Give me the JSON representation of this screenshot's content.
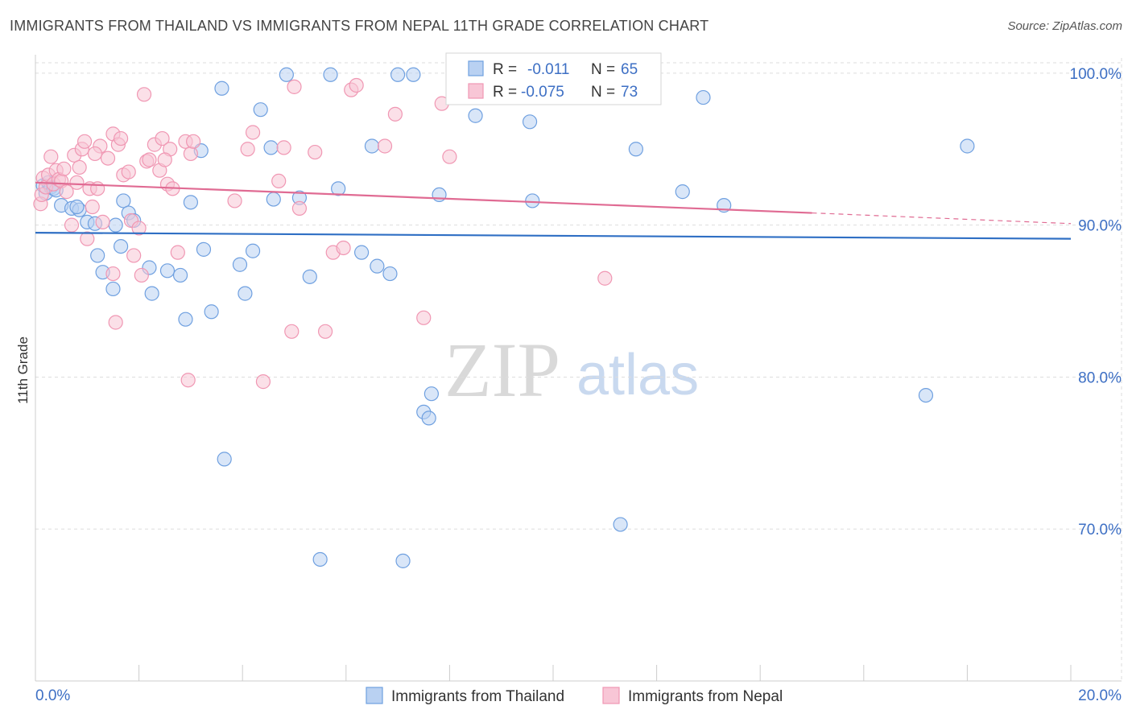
{
  "title": "IMMIGRANTS FROM THAILAND VS IMMIGRANTS FROM NEPAL 11TH GRADE CORRELATION CHART",
  "source": "Source: ZipAtlas.com",
  "watermark": {
    "zip": "ZIP",
    "atlas": "atlas"
  },
  "legend_box": {
    "rows": [
      {
        "r_label": "R =",
        "r_value": "-0.011",
        "n_label": "N =",
        "n_value": "65"
      },
      {
        "r_label": "R =",
        "r_value": "-0.075",
        "n_label": "N =",
        "n_value": "73"
      }
    ]
  },
  "bottom_legend": [
    "Immigrants from Thailand",
    "Immigrants from Nepal"
  ],
  "colors": {
    "thailand": "#6fa0e0",
    "thailand_fill": "#b9d1f2",
    "thailand_line": "#2f6fc4",
    "nepal": "#f097b3",
    "nepal_fill": "#f8c6d6",
    "nepal_line": "#e06b93",
    "tick": "#3d6fc4"
  },
  "chart_data": {
    "type": "scatter",
    "title": "IMMIGRANTS FROM THAILAND VS IMMIGRANTS FROM NEPAL 11TH GRADE CORRELATION CHART",
    "xlabel": "",
    "ylabel": "11th Grade",
    "xlim": [
      0,
      20
    ],
    "ylim": [
      60,
      101
    ],
    "x_tick_labels": [
      "0.0%",
      "20.0%"
    ],
    "y_ticks": [
      70,
      80,
      90,
      100
    ],
    "y_tick_labels": [
      "70.0%",
      "80.0%",
      "90.0%",
      "100.0%"
    ],
    "grid": true,
    "legend_position": "top-center",
    "series": [
      {
        "name": "Immigrants from Thailand",
        "R": -0.011,
        "N": 65,
        "trend": {
          "x": [
            0,
            20
          ],
          "y": [
            89.5,
            89.1
          ]
        },
        "points": [
          [
            0.15,
            92.6
          ],
          [
            0.2,
            92.1
          ],
          [
            0.25,
            92.8
          ],
          [
            0.3,
            92.5
          ],
          [
            0.35,
            92.4
          ],
          [
            0.5,
            91.3
          ],
          [
            0.7,
            91.1
          ],
          [
            0.85,
            91.0
          ],
          [
            0.8,
            91.2
          ],
          [
            1.0,
            90.2
          ],
          [
            1.15,
            90.1
          ],
          [
            1.2,
            88.0
          ],
          [
            1.3,
            86.9
          ],
          [
            1.5,
            85.8
          ],
          [
            1.7,
            91.6
          ],
          [
            1.8,
            90.8
          ],
          [
            1.9,
            90.3
          ],
          [
            1.65,
            88.6
          ],
          [
            2.2,
            87.2
          ],
          [
            2.25,
            85.5
          ],
          [
            2.55,
            87.0
          ],
          [
            2.8,
            86.7
          ],
          [
            2.9,
            83.8
          ],
          [
            3.0,
            91.5
          ],
          [
            3.25,
            88.4
          ],
          [
            3.4,
            84.3
          ],
          [
            3.2,
            94.9
          ],
          [
            3.6,
            99.0
          ],
          [
            3.65,
            74.6
          ],
          [
            3.95,
            87.4
          ],
          [
            4.05,
            85.5
          ],
          [
            4.2,
            88.3
          ],
          [
            4.35,
            97.6
          ],
          [
            4.55,
            95.1
          ],
          [
            4.6,
            91.7
          ],
          [
            4.85,
            99.9
          ],
          [
            5.1,
            91.8
          ],
          [
            5.3,
            86.6
          ],
          [
            5.5,
            68.0
          ],
          [
            5.7,
            99.9
          ],
          [
            5.85,
            92.4
          ],
          [
            6.3,
            88.2
          ],
          [
            6.5,
            95.2
          ],
          [
            6.6,
            87.3
          ],
          [
            6.85,
            86.8
          ],
          [
            7.0,
            99.9
          ],
          [
            7.1,
            67.9
          ],
          [
            7.3,
            99.9
          ],
          [
            7.5,
            77.7
          ],
          [
            7.6,
            77.3
          ],
          [
            7.65,
            78.9
          ],
          [
            7.8,
            92.0
          ],
          [
            8.5,
            97.2
          ],
          [
            9.2,
            99.8
          ],
          [
            9.55,
            96.8
          ],
          [
            9.6,
            91.6
          ],
          [
            11.3,
            70.3
          ],
          [
            11.6,
            95.0
          ],
          [
            12.5,
            92.2
          ],
          [
            12.9,
            98.4
          ],
          [
            13.3,
            91.3
          ],
          [
            17.2,
            78.8
          ],
          [
            18.0,
            95.2
          ],
          [
            0.4,
            92.3
          ],
          [
            1.55,
            90.0
          ]
        ]
      },
      {
        "name": "Immigrants from Nepal",
        "R": -0.075,
        "N": 73,
        "trend": {
          "x": [
            0,
            15
          ],
          "y": [
            92.8,
            90.8
          ]
        },
        "trend_dashed": {
          "x": [
            15,
            20
          ],
          "y": [
            90.8,
            90.1
          ]
        },
        "points": [
          [
            0.1,
            91.4
          ],
          [
            0.12,
            92.0
          ],
          [
            0.15,
            93.1
          ],
          [
            0.2,
            92.5
          ],
          [
            0.25,
            93.3
          ],
          [
            0.3,
            94.5
          ],
          [
            0.35,
            92.7
          ],
          [
            0.4,
            93.6
          ],
          [
            0.45,
            93.0
          ],
          [
            0.5,
            92.9
          ],
          [
            0.55,
            93.7
          ],
          [
            0.6,
            92.2
          ],
          [
            0.7,
            90.0
          ],
          [
            0.75,
            94.6
          ],
          [
            0.85,
            93.8
          ],
          [
            0.9,
            95.0
          ],
          [
            0.95,
            95.5
          ],
          [
            1.0,
            89.1
          ],
          [
            1.05,
            92.4
          ],
          [
            1.1,
            91.2
          ],
          [
            1.2,
            92.4
          ],
          [
            1.25,
            95.2
          ],
          [
            1.3,
            90.2
          ],
          [
            1.4,
            94.4
          ],
          [
            1.5,
            86.8
          ],
          [
            1.5,
            96.0
          ],
          [
            1.55,
            83.6
          ],
          [
            1.6,
            95.3
          ],
          [
            1.65,
            95.7
          ],
          [
            1.7,
            93.3
          ],
          [
            1.8,
            93.5
          ],
          [
            1.85,
            90.3
          ],
          [
            1.9,
            88.0
          ],
          [
            2.0,
            89.8
          ],
          [
            2.05,
            86.7
          ],
          [
            2.1,
            98.6
          ],
          [
            2.15,
            94.2
          ],
          [
            2.2,
            94.3
          ],
          [
            2.3,
            95.3
          ],
          [
            2.4,
            93.6
          ],
          [
            2.45,
            95.7
          ],
          [
            2.55,
            92.7
          ],
          [
            2.6,
            95.0
          ],
          [
            2.65,
            92.4
          ],
          [
            2.75,
            88.2
          ],
          [
            2.9,
            95.5
          ],
          [
            2.95,
            79.8
          ],
          [
            3.0,
            94.7
          ],
          [
            3.05,
            95.5
          ],
          [
            3.85,
            91.6
          ],
          [
            4.1,
            95.0
          ],
          [
            4.2,
            96.1
          ],
          [
            4.4,
            79.7
          ],
          [
            4.7,
            92.9
          ],
          [
            4.8,
            95.1
          ],
          [
            4.95,
            83.0
          ],
          [
            5.0,
            99.1
          ],
          [
            5.1,
            91.1
          ],
          [
            5.4,
            94.8
          ],
          [
            5.6,
            83.0
          ],
          [
            5.75,
            88.2
          ],
          [
            5.95,
            88.5
          ],
          [
            6.1,
            98.9
          ],
          [
            6.2,
            99.2
          ],
          [
            6.75,
            95.2
          ],
          [
            6.95,
            97.3
          ],
          [
            7.5,
            83.9
          ],
          [
            7.85,
            98.0
          ],
          [
            8.0,
            94.5
          ],
          [
            11.0,
            86.5
          ],
          [
            1.15,
            94.7
          ],
          [
            0.8,
            92.8
          ],
          [
            2.5,
            94.3
          ]
        ]
      }
    ]
  }
}
